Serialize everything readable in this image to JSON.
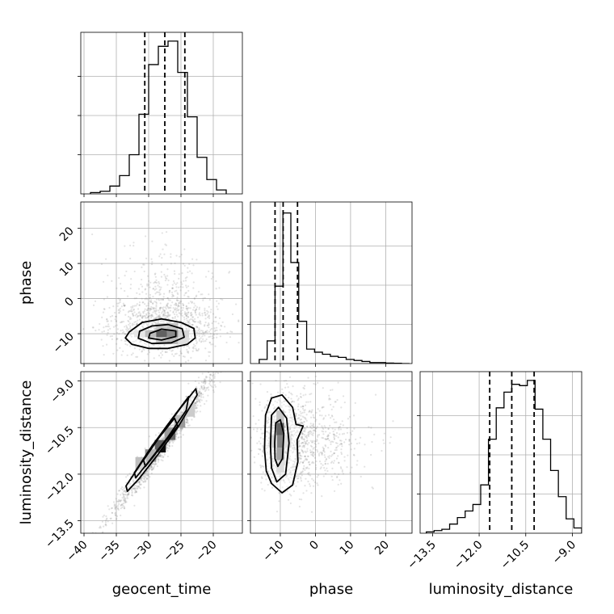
{
  "chart_data": {
    "type": "corner",
    "parameters": [
      "geocent_time",
      "phase",
      "luminosity_distance"
    ],
    "colors": {
      "ink": "#000000",
      "grid": "#b0b0b0",
      "points": "#808080"
    },
    "grid": true,
    "ranges": {
      "geocent_time": [
        -40.5,
        -15.5
      ],
      "phase": [
        -18.5,
        27.5
      ],
      "luminosity_distance": [
        -13.9,
        -8.7
      ]
    },
    "ticks": {
      "geocent_time": {
        "values": [
          -40,
          -35,
          -30,
          -25,
          -20
        ],
        "labels": [
          "−40",
          "−35",
          "−30",
          "−25",
          "−20"
        ]
      },
      "phase": {
        "values": [
          -10,
          0,
          10,
          20
        ],
        "labels": [
          "−10",
          "0",
          "10",
          "20"
        ]
      },
      "luminosity_distance": {
        "values": [
          -13.5,
          -12.0,
          -10.5,
          -9.0
        ],
        "labels": [
          "−13.5",
          "−12.0",
          "−10.5",
          "−9.0"
        ]
      }
    },
    "quantiles": {
      "geocent_time": [
        -30.6,
        -27.5,
        -24.4
      ],
      "phase": [
        -11.5,
        -9.2,
        -5.1
      ],
      "luminosity_distance": [
        -11.66,
        -10.95,
        -10.23
      ]
    },
    "histograms": {
      "geocent_time": {
        "edges": [
          -39.0,
          -37.5,
          -36.0,
          -34.5,
          -33.0,
          -31.5,
          -30.0,
          -28.5,
          -27.0,
          -25.5,
          -24.0,
          -22.5,
          -21.0,
          -19.5,
          -18.0
        ],
        "counts": [
          1,
          2,
          6,
          14,
          30,
          61,
          99,
          113,
          117,
          93,
          59,
          28,
          11,
          3
        ],
        "ymax": 120
      },
      "phase": {
        "edges": [
          -16.0,
          -13.75,
          -11.5,
          -9.25,
          -7.0,
          -4.75,
          -2.5,
          -0.25,
          2.0,
          4.25,
          6.5,
          8.75,
          11.0,
          13.25,
          15.5,
          17.75,
          20.0,
          22.25,
          24.5,
          26.75
        ],
        "counts": [
          4,
          22,
          75,
          146,
          98,
          41,
          14,
          11,
          9,
          7,
          6,
          4,
          3,
          2,
          1,
          1,
          0.5,
          0.3,
          0
        ],
        "ymax": 152
      },
      "luminosity_distance": {
        "edges": [
          -13.7,
          -13.45,
          -13.2,
          -12.95,
          -12.7,
          -12.45,
          -12.2,
          -11.95,
          -11.7,
          -11.45,
          -11.2,
          -10.95,
          -10.7,
          -10.45,
          -10.2,
          -9.95,
          -9.7,
          -9.45,
          -9.2,
          -8.95,
          -8.7
        ],
        "counts": [
          1,
          2,
          3,
          7,
          12,
          17,
          22,
          37,
          72,
          96,
          108,
          114,
          113,
          117,
          95,
          72,
          48,
          28,
          11,
          4
        ],
        "ymax": 120
      }
    },
    "pairs": [
      {
        "x": "geocent_time",
        "y": "phase",
        "contours": [
          [
            [
              -33,
              -9.5
            ],
            [
              -31,
              -6.8
            ],
            [
              -28,
              -5.8
            ],
            [
              -25,
              -6.8
            ],
            [
              -23,
              -8.5
            ],
            [
              -22.8,
              -11.2
            ],
            [
              -24,
              -13
            ],
            [
              -27,
              -14.2
            ],
            [
              -30,
              -14.2
            ],
            [
              -32.6,
              -13
            ],
            [
              -33.6,
              -11.2
            ]
          ],
          [
            [
              -31.4,
              -9.3
            ],
            [
              -29.5,
              -7.8
            ],
            [
              -27,
              -7.4
            ],
            [
              -24.8,
              -8.6
            ],
            [
              -24.5,
              -11
            ],
            [
              -26.5,
              -12.6
            ],
            [
              -29.5,
              -12.8
            ],
            [
              -31.6,
              -11.3
            ]
          ],
          [
            [
              -29.8,
              -9.9
            ],
            [
              -28,
              -8.7
            ],
            [
              -25.8,
              -9.2
            ],
            [
              -25.8,
              -10.8
            ],
            [
              -28,
              -11.8
            ],
            [
              -30,
              -11.2
            ]
          ]
        ],
        "hist": [
          {
            "x": -28,
            "y": -10,
            "w": 0.95
          },
          {
            "x": -26.3,
            "y": -10,
            "w": 0.7
          },
          {
            "x": -29.7,
            "y": -10,
            "w": 0.4
          },
          {
            "x": -24.6,
            "y": -10,
            "w": 0.25
          },
          {
            "x": -28,
            "y": -8,
            "w": 0.3
          },
          {
            "x": -26.3,
            "y": -8,
            "w": 0.35
          },
          {
            "x": -28,
            "y": -12,
            "w": 0.35
          },
          {
            "x": -26.3,
            "y": -12,
            "w": 0.4
          },
          {
            "x": -31.4,
            "y": -10,
            "w": 0.15
          },
          {
            "x": -24.6,
            "y": -12,
            "w": 0.2
          }
        ]
      },
      {
        "x": "geocent_time",
        "y": "luminosity_distance",
        "contours": [
          [
            [
              -33.5,
              -12.38
            ],
            [
              -31,
              -11.6
            ],
            [
              -28,
              -10.7
            ],
            [
              -25,
              -9.85
            ],
            [
              -22.7,
              -9.25
            ],
            [
              -22.5,
              -9.45
            ],
            [
              -25.5,
              -10.5
            ],
            [
              -28.5,
              -11.35
            ],
            [
              -31.5,
              -12.15
            ],
            [
              -33.3,
              -12.55
            ]
          ],
          [
            [
              -32.2,
              -11.95
            ],
            [
              -29.5,
              -11.1
            ],
            [
              -26.5,
              -10.25
            ],
            [
              -23.8,
              -9.5
            ],
            [
              -24.2,
              -9.95
            ],
            [
              -27,
              -10.8
            ],
            [
              -30,
              -11.6
            ],
            [
              -32,
              -12.12
            ]
          ],
          [
            [
              -30.8,
              -11.55
            ],
            [
              -28.5,
              -10.85
            ],
            [
              -26,
              -10.2
            ],
            [
              -25.5,
              -10.45
            ],
            [
              -28,
              -11.1
            ],
            [
              -30.5,
              -11.75
            ]
          ]
        ],
        "hist": [
          {
            "x": -28.2,
            "y": -11.1,
            "w": 0.95
          },
          {
            "x": -26.7,
            "y": -10.7,
            "w": 0.6
          },
          {
            "x": -25.2,
            "y": -10.3,
            "w": 0.4
          },
          {
            "x": -29.7,
            "y": -11.4,
            "w": 0.45
          },
          {
            "x": -31.2,
            "y": -11.65,
            "w": 0.25
          },
          {
            "x": -23.7,
            "y": -9.95,
            "w": 0.2
          }
        ]
      },
      {
        "x": "phase",
        "y": "luminosity_distance",
        "contours": [
          [
            [
              -14.5,
              -11.2
            ],
            [
              -14.2,
              -10.1
            ],
            [
              -12.5,
              -9.55
            ],
            [
              -9.5,
              -9.45
            ],
            [
              -6.5,
              -9.85
            ],
            [
              -5.5,
              -10.4
            ],
            [
              -3.5,
              -10.45
            ],
            [
              -5.2,
              -10.9
            ],
            [
              -5,
              -11.6
            ],
            [
              -6.5,
              -12.35
            ],
            [
              -9.5,
              -12.6
            ],
            [
              -12.5,
              -12.3
            ],
            [
              -14,
              -11.9
            ]
          ],
          [
            [
              -12.8,
              -11.1
            ],
            [
              -12.5,
              -10.1
            ],
            [
              -10.5,
              -9.85
            ],
            [
              -8.2,
              -10.2
            ],
            [
              -7.5,
              -11
            ],
            [
              -8.5,
              -12
            ],
            [
              -11,
              -12.25
            ],
            [
              -12.5,
              -11.8
            ]
          ],
          [
            [
              -11.6,
              -11.0
            ],
            [
              -11.3,
              -10.35
            ],
            [
              -10,
              -10.25
            ],
            [
              -9,
              -10.7
            ],
            [
              -9.4,
              -11.5
            ],
            [
              -10.7,
              -11.75
            ],
            [
              -11.5,
              -11.5
            ]
          ]
        ],
        "hist": [
          {
            "x": -10,
            "y": -10.55,
            "w": 0.95
          },
          {
            "x": -10,
            "y": -10.95,
            "w": 0.75
          },
          {
            "x": -10,
            "y": -11.35,
            "w": 0.55
          },
          {
            "x": -10,
            "y": -10.15,
            "w": 0.35
          },
          {
            "x": -12,
            "y": -10.95,
            "w": 0.25
          },
          {
            "x": -8,
            "y": -10.95,
            "w": 0.2
          },
          {
            "x": -10,
            "y": -11.75,
            "w": 0.2
          }
        ]
      }
    ]
  }
}
